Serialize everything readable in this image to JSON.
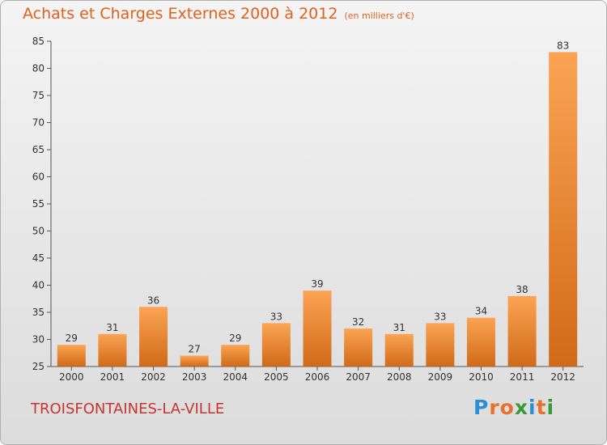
{
  "title": "Achats et Charges Externes 2000 à 2012",
  "subtitle": "(en milliers d'€)",
  "city": "TROISFONTAINES-LA-VILLE",
  "logo": {
    "text": "Proxiti",
    "letters": [
      "P",
      "r",
      "o",
      "x",
      "i",
      "t",
      "i"
    ],
    "colors": [
      "#2a8fd6",
      "#e8702a",
      "#e8702a",
      "#3a9a3a",
      "#2a8fd6",
      "#e8702a",
      "#3a9a3a"
    ]
  },
  "colors": {
    "bar_top": "#fba454",
    "bar_bottom": "#d06a18",
    "title": "#e0601c",
    "city": "#c8352f"
  },
  "chart_data": {
    "type": "bar",
    "categories": [
      "2000",
      "2001",
      "2002",
      "2003",
      "2004",
      "2005",
      "2006",
      "2007",
      "2008",
      "2009",
      "2010",
      "2011",
      "2012"
    ],
    "values": [
      29,
      31,
      36,
      27,
      29,
      33,
      39,
      32,
      31,
      33,
      34,
      38,
      83
    ],
    "ylim": [
      25,
      85
    ],
    "yticks": [
      25,
      30,
      35,
      40,
      45,
      50,
      55,
      60,
      65,
      70,
      75,
      80,
      85
    ],
    "xlabel": "",
    "ylabel": "",
    "grid": false
  }
}
